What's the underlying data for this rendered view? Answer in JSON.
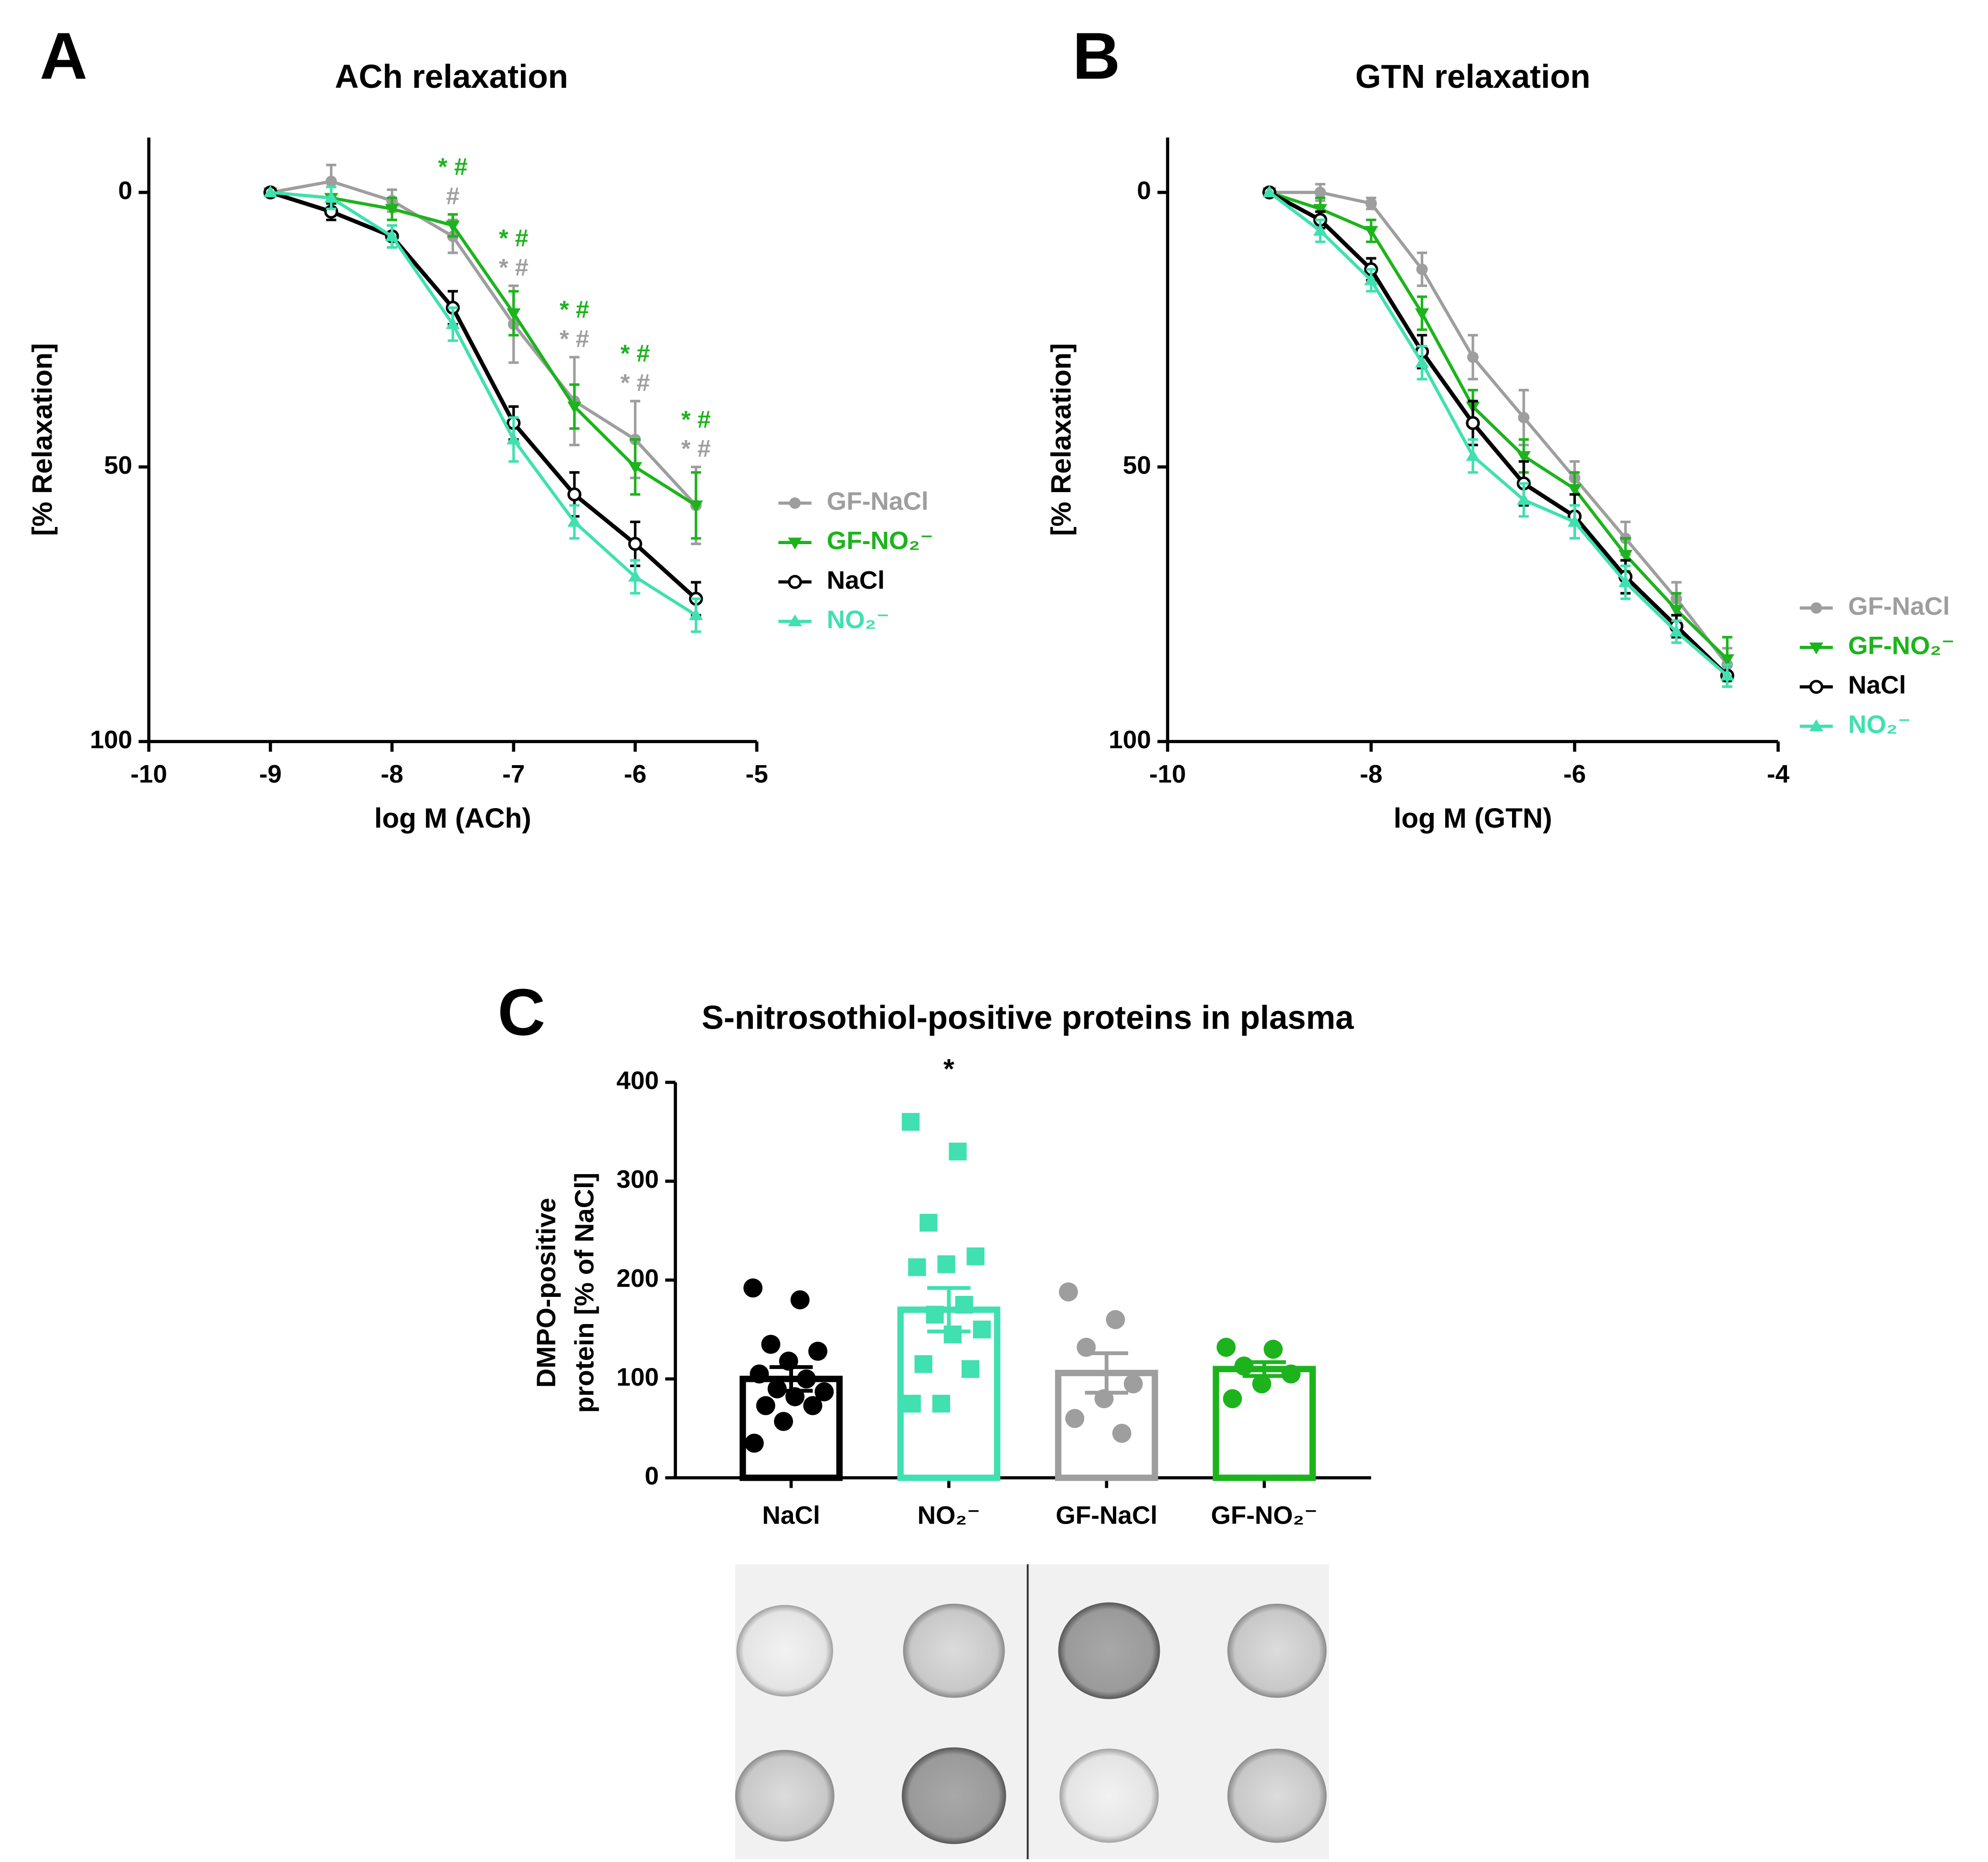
{
  "chart_data": [
    {
      "type": "line",
      "panel_label": "A",
      "title": "ACh relaxation",
      "xlabel": "log M (ACh)",
      "ylabel": "[% Relaxation]",
      "x": [
        -9,
        -8.5,
        -8,
        -7.5,
        -7,
        -6.5,
        -6,
        -5.5
      ],
      "xlim": [
        -10,
        -5
      ],
      "xticks": [
        -10,
        -9,
        -8,
        -7,
        -6,
        -5
      ],
      "ylim": [
        -10,
        100
      ],
      "yticks": [
        0,
        50,
        100
      ],
      "inverted": true,
      "legend": "right",
      "series": [
        {
          "name": "GF-NaCl",
          "color": "#9e9e9e",
          "marker": "circle",
          "values": [
            0,
            -2,
            1.5,
            8,
            24,
            38,
            45,
            57
          ],
          "errors": [
            0,
            3,
            2,
            3,
            7,
            8,
            7,
            7
          ]
        },
        {
          "name": "GF-NO₂⁻",
          "color": "#1db31d",
          "marker": "triangle-down",
          "values": [
            0,
            1,
            3,
            6,
            22,
            39,
            50,
            57
          ],
          "errors": [
            0,
            2,
            2,
            2,
            4,
            4,
            5,
            6
          ]
        },
        {
          "name": "NaCl",
          "color": "#000000",
          "marker": "open-circle",
          "values": [
            0,
            3.5,
            8,
            21,
            42,
            55,
            64,
            74
          ],
          "errors": [
            0,
            1.5,
            2,
            3,
            3,
            4,
            4,
            3
          ]
        },
        {
          "name": "NO₂⁻",
          "color": "#40e0b0",
          "marker": "triangle-up",
          "values": [
            0,
            1,
            8,
            24,
            45,
            60,
            70,
            77
          ],
          "errors": [
            0,
            2,
            2,
            3,
            4,
            3,
            3,
            3
          ]
        }
      ],
      "annotations": [
        {
          "x": -7.5,
          "texts": [
            {
              "text": "* #",
              "color": "#1db31d"
            },
            {
              "text": "#",
              "color": "#9e9e9e"
            }
          ]
        },
        {
          "x": -7,
          "texts": [
            {
              "text": "* #",
              "color": "#1db31d"
            },
            {
              "text": "* #",
              "color": "#9e9e9e"
            }
          ]
        },
        {
          "x": -6.5,
          "texts": [
            {
              "text": "* #",
              "color": "#1db31d"
            },
            {
              "text": "* #",
              "color": "#9e9e9e"
            }
          ]
        },
        {
          "x": -6,
          "texts": [
            {
              "text": "* #",
              "color": "#1db31d"
            },
            {
              "text": "* #",
              "color": "#9e9e9e"
            }
          ]
        },
        {
          "x": -5.5,
          "texts": [
            {
              "text": "* #",
              "color": "#1db31d"
            },
            {
              "text": "* #",
              "color": "#9e9e9e"
            }
          ]
        }
      ]
    },
    {
      "type": "line",
      "panel_label": "B",
      "title": "GTN relaxation",
      "xlabel": "log M (GTN)",
      "ylabel": "[% Relaxation]",
      "x": [
        -9,
        -8.5,
        -8,
        -7.5,
        -7,
        -6.5,
        -6,
        -5.5,
        -5,
        -4.5
      ],
      "xlim": [
        -10,
        -4
      ],
      "xticks": [
        -10,
        -8,
        -6,
        -4
      ],
      "ylim": [
        -10,
        100
      ],
      "yticks": [
        0,
        50,
        100
      ],
      "inverted": true,
      "legend": "lower right",
      "series": [
        {
          "name": "GF-NaCl",
          "color": "#9e9e9e",
          "marker": "circle",
          "values": [
            0,
            0,
            2,
            14,
            30,
            41,
            52,
            63,
            74,
            86
          ],
          "errors": [
            0,
            1.5,
            1,
            3,
            4,
            5,
            3,
            3,
            3,
            3
          ]
        },
        {
          "name": "GF-NO₂⁻",
          "color": "#1db31d",
          "marker": "triangle-down",
          "values": [
            0,
            3,
            7,
            22,
            39,
            48,
            54,
            66,
            76,
            85
          ],
          "errors": [
            0,
            2,
            2,
            3,
            3,
            3,
            3,
            3,
            3,
            4
          ]
        },
        {
          "name": "NaCl",
          "color": "#000000",
          "marker": "open-circle",
          "values": [
            0,
            5,
            14,
            29,
            42,
            53,
            59,
            70,
            79,
            88
          ],
          "errors": [
            0,
            1.5,
            2,
            3,
            4,
            4,
            4,
            3,
            2,
            2
          ]
        },
        {
          "name": "NO₂⁻",
          "color": "#40e0b0",
          "marker": "triangle-up",
          "values": [
            0,
            7,
            16,
            31,
            48,
            56,
            60,
            71,
            80,
            88
          ],
          "errors": [
            0,
            2,
            2,
            3,
            3,
            3,
            3,
            3,
            2,
            2
          ]
        }
      ]
    },
    {
      "type": "bar",
      "panel_label": "C",
      "title": "S-nitrosothiol-positive proteins in plasma",
      "ylabel": [
        "DMPO-positive",
        "protein [% of  NaCl]"
      ],
      "categories": [
        "NaCl",
        "NO₂⁻",
        "GF-NaCl",
        "GF-NO₂⁻"
      ],
      "values": [
        100,
        170,
        106,
        110
      ],
      "errors": [
        12,
        22,
        20,
        7
      ],
      "colors": [
        "#000000",
        "#40e0b0",
        "#9e9e9e",
        "#1db31d"
      ],
      "points": [
        [
          192,
          180,
          135,
          128,
          118,
          105,
          100,
          90,
          87,
          82,
          73,
          73,
          57,
          35
        ],
        [
          360,
          330,
          258,
          224,
          216,
          213,
          175,
          165,
          150,
          145,
          115,
          110,
          75,
          75
        ],
        [
          188,
          160,
          132,
          95,
          80,
          60,
          45
        ],
        [
          132,
          130,
          113,
          105,
          95,
          80
        ]
      ],
      "bar_annotations": [
        null,
        "*",
        null,
        null
      ],
      "ylim": [
        0,
        400
      ],
      "yticks": [
        0,
        100,
        200,
        300,
        400
      ]
    }
  ]
}
